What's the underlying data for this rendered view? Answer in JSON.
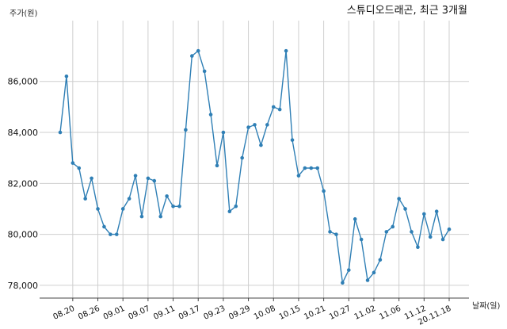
{
  "chart_data": {
    "type": "line",
    "title": "스튜디오드래곤, 최근 3개월",
    "ylabel": "주가(원)",
    "xlabel": "날짜(일)",
    "ylim": [
      77500,
      88200
    ],
    "y_ticks": [
      78000,
      80000,
      82000,
      84000,
      86000
    ],
    "y_tick_labels": [
      "78,000",
      "80,000",
      "82,000",
      "84,000",
      "86,000"
    ],
    "x_tick_labels": [
      "08.20",
      "08.26",
      "09.01",
      "09.07",
      "09.11",
      "09.17",
      "09.23",
      "09.29",
      "10.08",
      "10.15",
      "10.21",
      "10.27",
      "11.02",
      "11.06",
      "11.12",
      "20.11.18"
    ],
    "x_tick_index": [
      2,
      6,
      10,
      14,
      18,
      22,
      26,
      30,
      34,
      38,
      42,
      46,
      50,
      54,
      58,
      62
    ],
    "grid": true,
    "line_color": "#2f7fb5",
    "series": [
      {
        "values": [
          84000,
          86200,
          82800,
          82600,
          81400,
          82200,
          81000,
          80300,
          80000,
          80000,
          81000,
          81400,
          82300,
          80700,
          82200,
          82100,
          80700,
          81500,
          81100,
          81100,
          84100,
          87000,
          87200,
          86400,
          84700,
          82700,
          84000,
          80900,
          81100,
          83000,
          84200,
          84300,
          83500,
          84300,
          85000,
          84900,
          87200,
          83700,
          82300,
          82600,
          82600,
          82600,
          81700,
          80100,
          80000,
          78100,
          78600,
          80600,
          79800,
          78200,
          78500,
          79000,
          80100,
          80300,
          81400,
          81000,
          80100,
          79500,
          80800,
          79900,
          80900,
          79800,
          80200
        ]
      }
    ]
  }
}
